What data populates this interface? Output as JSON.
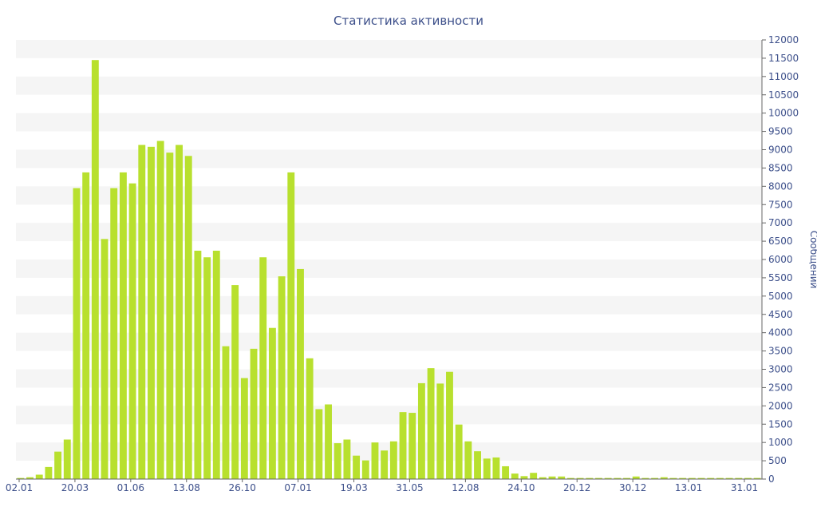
{
  "chart_data": {
    "type": "bar",
    "title": "Статистика активности",
    "xlabel": "",
    "ylabel": "Сообщений",
    "ylim": [
      0,
      12000
    ],
    "ytick_step": 500,
    "y_axis_position": "right",
    "grid": "alternating horizontal bands",
    "bar_color": "#b8e02e",
    "band_color": "#f5f5f5",
    "text_color": "#3c4f8a",
    "xtick_labels": [
      "02.01",
      "20.03",
      "01.06",
      "13.08",
      "26.10",
      "07.01",
      "19.03",
      "31.05",
      "12.08",
      "24.10",
      "20.12",
      "30.12",
      "13.01",
      "31.01"
    ],
    "values": [
      30,
      50,
      120,
      330,
      750,
      1080,
      7950,
      8380,
      11450,
      6560,
      7950,
      8380,
      8080,
      9130,
      9080,
      9240,
      8920,
      9130,
      8830,
      6240,
      6060,
      6240,
      3630,
      5300,
      2760,
      3560,
      6060,
      4130,
      5540,
      8380,
      5740,
      3300,
      1910,
      2040,
      980,
      1080,
      640,
      510,
      1000,
      780,
      1030,
      1830,
      1810,
      2620,
      3030,
      2610,
      2930,
      1490,
      1030,
      760,
      560,
      590,
      350,
      150,
      80,
      170,
      50,
      70,
      70,
      30,
      30,
      30,
      30,
      30,
      30,
      30,
      70,
      30,
      30,
      50,
      30,
      30,
      30,
      30,
      30,
      30,
      30,
      30,
      30,
      30
    ]
  }
}
